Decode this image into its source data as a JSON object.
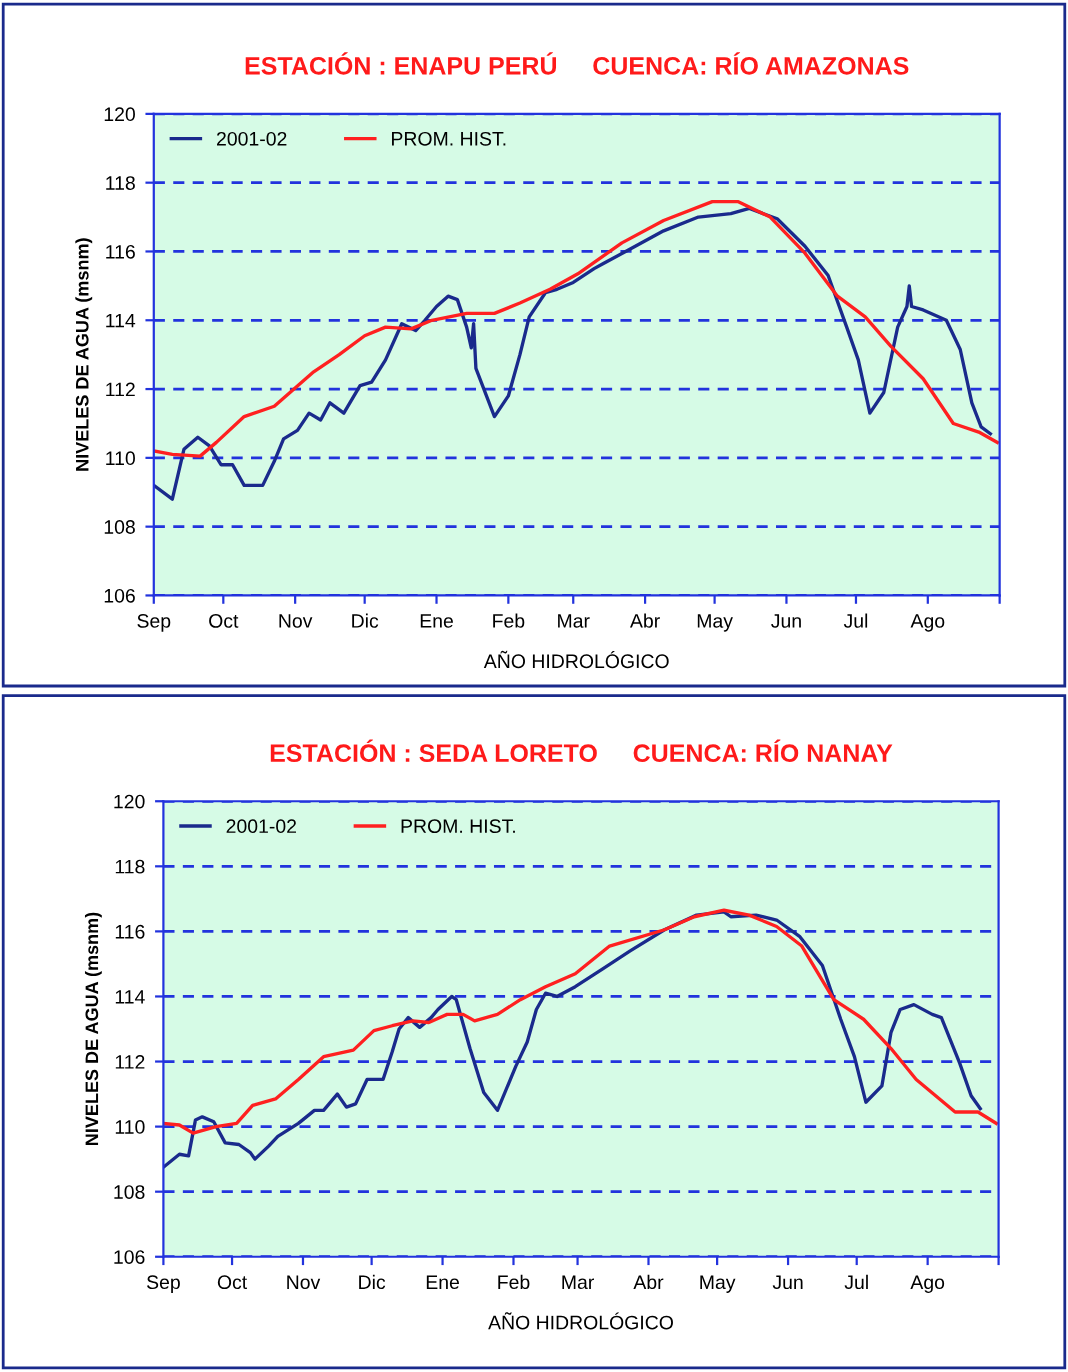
{
  "chart_data": [
    {
      "type": "line",
      "title": "ESTACIÓN : ENAPU PERÚ     CUENCA: RÍO AMAZONAS",
      "xlabel": "AÑO HIDROLÓGICO",
      "ylabel": "NIVELES DE AGUA (msnm)",
      "xlim": [
        "2001-09-01",
        "2002-09-01"
      ],
      "xticks": [
        {
          "value": "2001-09-01",
          "label": "Sep"
        },
        {
          "value": "2001-10-01",
          "label": "Oct"
        },
        {
          "value": "2001-11-01",
          "label": "Nov"
        },
        {
          "value": "2001-12-01",
          "label": "Dic"
        },
        {
          "value": "2002-01-01",
          "label": "Ene"
        },
        {
          "value": "2002-02-01",
          "label": "Feb"
        },
        {
          "value": "2002-03-01",
          "label": "Mar"
        },
        {
          "value": "2002-04-01",
          "label": "Abr"
        },
        {
          "value": "2002-05-01",
          "label": "May"
        },
        {
          "value": "2002-06-01",
          "label": "Jun"
        },
        {
          "value": "2002-07-01",
          "label": "Jul"
        },
        {
          "value": "2002-08-01",
          "label": "Ago"
        },
        {
          "value": "2002-09-01",
          "label": null
        }
      ],
      "ylim": [
        106,
        120
      ],
      "yticks": [
        106,
        108,
        110,
        112,
        114,
        116,
        118,
        120
      ],
      "grid": "y",
      "legend": "top left",
      "series": [
        {
          "name": "2001-02",
          "color": "#1a2a8c",
          "x": [
            "2001-09-01",
            "2001-09-09",
            "2001-09-14",
            "2001-09-20",
            "2001-09-25",
            "2001-09-30",
            "2001-10-05",
            "2001-10-10",
            "2001-10-18",
            "2001-10-23",
            "2001-10-27",
            "2001-11-02",
            "2001-11-07",
            "2001-11-12",
            "2001-11-16",
            "2001-11-22",
            "2001-11-29",
            "2001-12-04",
            "2001-12-10",
            "2001-12-17",
            "2001-12-23",
            "2001-12-27",
            "2002-01-01",
            "2002-01-06",
            "2002-01-10",
            "2002-01-14",
            "2002-01-16",
            "2002-01-17",
            "2002-01-18",
            "2002-01-26",
            "2002-02-01",
            "2002-02-06",
            "2002-02-10",
            "2002-02-17",
            "2002-02-22",
            "2002-03-01",
            "2002-03-10",
            "2002-03-14",
            "2002-03-25",
            "2002-04-09",
            "2002-04-24",
            "2002-05-08",
            "2002-05-16",
            "2002-05-28",
            "2002-06-09",
            "2002-06-19",
            "2002-06-27",
            "2002-07-02",
            "2002-07-07",
            "2002-07-13",
            "2002-07-19",
            "2002-07-23",
            "2002-07-24",
            "2002-07-25",
            "2002-07-30",
            "2002-08-09",
            "2002-08-15",
            "2002-08-20",
            "2002-08-24",
            "2002-08-28"
          ],
          "values": [
            109.2,
            108.8,
            110.25,
            110.6,
            110.35,
            109.8,
            109.8,
            109.2,
            109.2,
            109.9,
            110.55,
            110.8,
            111.3,
            111.1,
            111.6,
            111.3,
            112.1,
            112.2,
            112.85,
            113.9,
            113.7,
            114.0,
            114.4,
            114.7,
            114.6,
            113.8,
            113.2,
            113.9,
            112.6,
            111.2,
            111.8,
            113.0,
            114.1,
            114.8,
            114.9,
            115.1,
            115.5,
            115.65,
            116.05,
            116.6,
            117.0,
            117.1,
            117.25,
            116.95,
            116.15,
            115.3,
            113.8,
            112.85,
            111.3,
            111.9,
            113.8,
            114.4,
            115.0,
            114.4,
            114.3,
            114.0,
            113.15,
            111.6,
            110.9,
            110.7
          ]
        },
        {
          "name": "PROM. HIST.",
          "color": "#ff2020",
          "x": [
            "2001-09-01",
            "2001-09-09",
            "2001-09-21",
            "2001-09-28",
            "2001-10-10",
            "2001-10-23",
            "2001-11-09",
            "2001-11-20",
            "2001-12-01",
            "2001-12-10",
            "2001-12-21",
            "2001-12-30",
            "2002-01-14",
            "2002-01-26",
            "2002-02-06",
            "2002-02-19",
            "2002-03-03",
            "2002-03-22",
            "2002-04-09",
            "2002-04-30",
            "2002-05-11",
            "2002-05-25",
            "2002-06-09",
            "2002-06-23",
            "2002-07-05",
            "2002-07-16",
            "2002-07-30",
            "2002-08-12",
            "2002-08-23",
            "2002-08-31"
          ],
          "values": [
            110.2,
            110.1,
            110.05,
            110.45,
            111.2,
            111.5,
            112.5,
            113.0,
            113.55,
            113.8,
            113.75,
            114.0,
            114.2,
            114.2,
            114.5,
            114.9,
            115.35,
            116.25,
            116.9,
            117.45,
            117.45,
            117.0,
            115.95,
            114.7,
            114.1,
            113.25,
            112.3,
            111.0,
            110.75,
            110.45
          ]
        }
      ]
    },
    {
      "type": "line",
      "title": "ESTACIÓN : SEDA LORETO     CUENCA: RÍO NANAY",
      "xlabel": "AÑO HIDROLÓGICO",
      "ylabel": "NIVELES DE AGUA (msnm)",
      "xlim": [
        "2001-09-01",
        "2002-09-01"
      ],
      "xticks": [
        {
          "value": "2001-09-01",
          "label": "Sep"
        },
        {
          "value": "2001-10-01",
          "label": "Oct"
        },
        {
          "value": "2001-11-01",
          "label": "Nov"
        },
        {
          "value": "2001-12-01",
          "label": "Dic"
        },
        {
          "value": "2002-01-01",
          "label": "Ene"
        },
        {
          "value": "2002-02-01",
          "label": "Feb"
        },
        {
          "value": "2002-03-01",
          "label": "Mar"
        },
        {
          "value": "2002-04-01",
          "label": "Abr"
        },
        {
          "value": "2002-05-01",
          "label": "May"
        },
        {
          "value": "2002-06-01",
          "label": "Jun"
        },
        {
          "value": "2002-07-01",
          "label": "Jul"
        },
        {
          "value": "2002-08-01",
          "label": "Ago"
        },
        {
          "value": "2002-09-01",
          "label": null
        }
      ],
      "ylim": [
        106,
        120
      ],
      "yticks": [
        106,
        108,
        110,
        112,
        114,
        116,
        118,
        120
      ],
      "grid": "y",
      "legend": "top left",
      "series": [
        {
          "name": "2001-02",
          "color": "#1a2a8c",
          "x": [
            "2001-09-01",
            "2001-09-08",
            "2001-09-12",
            "2001-09-15",
            "2001-09-18",
            "2001-09-23",
            "2001-09-28",
            "2001-10-04",
            "2001-10-09",
            "2001-10-11",
            "2001-10-17",
            "2001-10-21",
            "2001-10-30",
            "2001-11-06",
            "2001-11-10",
            "2001-11-16",
            "2001-11-20",
            "2001-11-24",
            "2001-11-29",
            "2001-12-06",
            "2001-12-10",
            "2001-12-13",
            "2001-12-17",
            "2001-12-22",
            "2001-12-27",
            "2001-12-30",
            "2002-01-05",
            "2002-01-07",
            "2002-01-13",
            "2002-01-19",
            "2002-01-25",
            "2002-02-02",
            "2002-02-07",
            "2002-02-11",
            "2002-02-15",
            "2002-02-20",
            "2002-02-28",
            "2002-03-12",
            "2002-03-24",
            "2002-04-08",
            "2002-04-22",
            "2002-05-04",
            "2002-05-07",
            "2002-05-18",
            "2002-05-27",
            "2002-06-06",
            "2002-06-16",
            "2002-06-24",
            "2002-06-30",
            "2002-07-05",
            "2002-07-12",
            "2002-07-16",
            "2002-07-20",
            "2002-07-26",
            "2002-08-03",
            "2002-08-07",
            "2002-08-15",
            "2002-08-20",
            "2002-08-24"
          ],
          "values": [
            108.75,
            109.15,
            109.1,
            110.2,
            110.3,
            110.15,
            109.5,
            109.45,
            109.2,
            109.0,
            109.4,
            109.7,
            110.1,
            110.5,
            110.5,
            111.0,
            110.6,
            110.7,
            111.45,
            111.45,
            112.3,
            113.0,
            113.35,
            113.05,
            113.35,
            113.6,
            114.0,
            113.9,
            112.4,
            111.05,
            110.5,
            111.85,
            112.6,
            113.6,
            114.1,
            114.0,
            114.3,
            114.85,
            115.4,
            116.05,
            116.5,
            116.6,
            116.45,
            116.5,
            116.35,
            115.85,
            114.95,
            113.3,
            112.15,
            110.75,
            111.25,
            112.9,
            113.6,
            113.75,
            113.45,
            113.35,
            111.95,
            110.95,
            110.55
          ]
        },
        {
          "name": "PROM. HIST.",
          "color": "#ff2020",
          "x": [
            "2001-09-01",
            "2001-09-08",
            "2001-09-14",
            "2001-09-24",
            "2001-10-03",
            "2001-10-10",
            "2001-10-20",
            "2001-10-30",
            "2001-11-10",
            "2001-11-23",
            "2001-12-02",
            "2001-12-10",
            "2001-12-19",
            "2001-12-26",
            "2002-01-03",
            "2002-01-10",
            "2002-01-15",
            "2002-01-25",
            "2002-02-04",
            "2002-02-15",
            "2002-02-28",
            "2002-03-15",
            "2002-04-08",
            "2002-04-21",
            "2002-05-04",
            "2002-05-15",
            "2002-05-27",
            "2002-06-07",
            "2002-06-21",
            "2002-07-04",
            "2002-07-16",
            "2002-07-27",
            "2002-08-13",
            "2002-08-23",
            "2002-08-31"
          ],
          "values": [
            110.1,
            110.05,
            109.8,
            110.0,
            110.1,
            110.65,
            110.85,
            111.45,
            112.15,
            112.35,
            112.95,
            113.1,
            113.25,
            113.2,
            113.45,
            113.45,
            113.25,
            113.45,
            113.9,
            114.3,
            114.7,
            115.55,
            116.05,
            116.45,
            116.65,
            116.5,
            116.15,
            115.55,
            113.9,
            113.3,
            112.4,
            111.45,
            110.45,
            110.45,
            110.1
          ]
        }
      ]
    }
  ]
}
